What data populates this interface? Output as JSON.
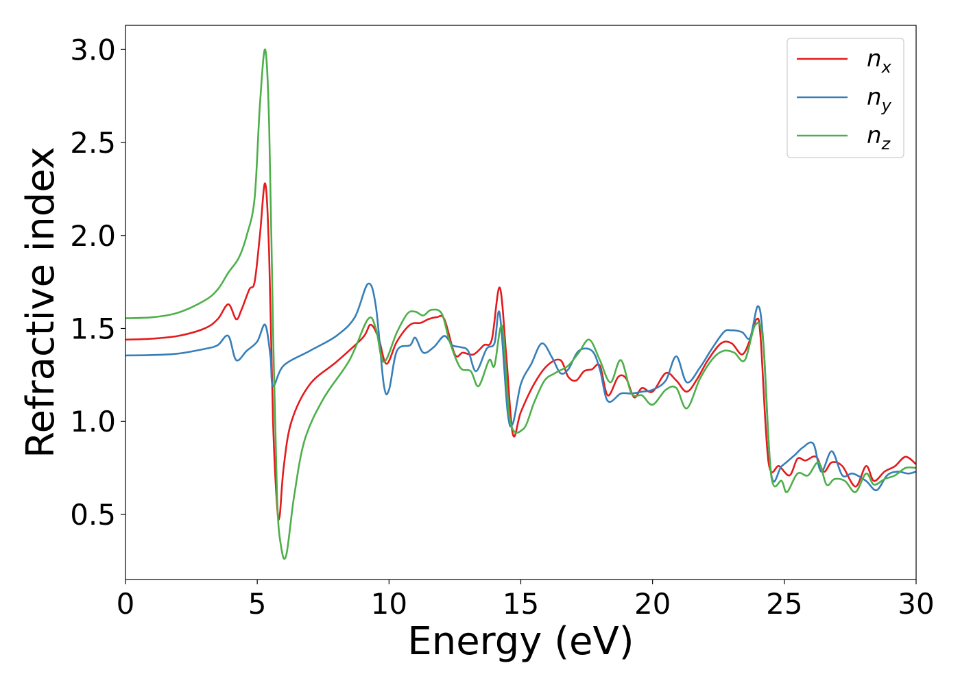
{
  "chart_data": {
    "type": "line",
    "title": "",
    "xlabel": "Energy (eV)",
    "ylabel": "Refractive index",
    "xlim": [
      0,
      30
    ],
    "ylim": [
      0.15,
      3.13
    ],
    "xticks": [
      0,
      5,
      10,
      15,
      20,
      25,
      30
    ],
    "yticks": [
      0.5,
      1.0,
      1.5,
      2.0,
      2.5,
      3.0
    ],
    "xtick_labels": [
      "0",
      "5",
      "10",
      "15",
      "20",
      "25",
      "30"
    ],
    "ytick_labels": [
      "0.5",
      "1.0",
      "1.5",
      "2.0",
      "2.5",
      "3.0"
    ],
    "grid": false,
    "legend_position": "top-right",
    "series": [
      {
        "name": "n_x",
        "legend_base": "n",
        "legend_sub": "x",
        "color": "#e41a1c",
        "points": [
          [
            0,
            1.44
          ],
          [
            1,
            1.445
          ],
          [
            2,
            1.46
          ],
          [
            3,
            1.5
          ],
          [
            3.5,
            1.55
          ],
          [
            3.9,
            1.63
          ],
          [
            4.2,
            1.55
          ],
          [
            4.4,
            1.6
          ],
          [
            4.7,
            1.71
          ],
          [
            4.9,
            1.75
          ],
          [
            5.1,
            2.0
          ],
          [
            5.3,
            2.28
          ],
          [
            5.45,
            1.9
          ],
          [
            5.6,
            1.0
          ],
          [
            5.75,
            0.55
          ],
          [
            5.85,
            0.49
          ],
          [
            6.0,
            0.75
          ],
          [
            6.3,
            1.0
          ],
          [
            7,
            1.2
          ],
          [
            8,
            1.32
          ],
          [
            9,
            1.45
          ],
          [
            9.3,
            1.52
          ],
          [
            9.6,
            1.45
          ],
          [
            9.9,
            1.31
          ],
          [
            10.3,
            1.43
          ],
          [
            10.8,
            1.52
          ],
          [
            11.2,
            1.53
          ],
          [
            11.5,
            1.55
          ],
          [
            11.8,
            1.56
          ],
          [
            12.1,
            1.55
          ],
          [
            12.5,
            1.36
          ],
          [
            12.8,
            1.37
          ],
          [
            13.2,
            1.36
          ],
          [
            13.6,
            1.41
          ],
          [
            13.9,
            1.44
          ],
          [
            14.2,
            1.72
          ],
          [
            14.45,
            1.35
          ],
          [
            14.7,
            0.93
          ],
          [
            15,
            1.05
          ],
          [
            15.5,
            1.2
          ],
          [
            16,
            1.3
          ],
          [
            16.5,
            1.33
          ],
          [
            16.8,
            1.24
          ],
          [
            17.1,
            1.22
          ],
          [
            17.4,
            1.27
          ],
          [
            17.7,
            1.28
          ],
          [
            18.0,
            1.3
          ],
          [
            18.3,
            1.14
          ],
          [
            18.7,
            1.24
          ],
          [
            19.0,
            1.23
          ],
          [
            19.3,
            1.13
          ],
          [
            19.6,
            1.18
          ],
          [
            20,
            1.16
          ],
          [
            20.5,
            1.26
          ],
          [
            20.9,
            1.22
          ],
          [
            21.3,
            1.16
          ],
          [
            21.7,
            1.23
          ],
          [
            22.1,
            1.33
          ],
          [
            22.6,
            1.42
          ],
          [
            23,
            1.42
          ],
          [
            23.4,
            1.36
          ],
          [
            23.7,
            1.44
          ],
          [
            23.95,
            1.55
          ],
          [
            24.1,
            1.45
          ],
          [
            24.4,
            0.78
          ],
          [
            24.8,
            0.76
          ],
          [
            25.2,
            0.71
          ],
          [
            25.5,
            0.8
          ],
          [
            25.8,
            0.79
          ],
          [
            26.2,
            0.81
          ],
          [
            26.5,
            0.73
          ],
          [
            26.8,
            0.78
          ],
          [
            27.2,
            0.76
          ],
          [
            27.7,
            0.65
          ],
          [
            28.1,
            0.76
          ],
          [
            28.4,
            0.68
          ],
          [
            28.8,
            0.73
          ],
          [
            29.2,
            0.76
          ],
          [
            29.6,
            0.81
          ],
          [
            30,
            0.77
          ]
        ]
      },
      {
        "name": "n_y",
        "legend_base": "n",
        "legend_sub": "y",
        "color": "#377eb8",
        "points": [
          [
            0,
            1.355
          ],
          [
            1,
            1.357
          ],
          [
            2,
            1.365
          ],
          [
            3,
            1.39
          ],
          [
            3.5,
            1.41
          ],
          [
            3.9,
            1.46
          ],
          [
            4.2,
            1.33
          ],
          [
            4.6,
            1.38
          ],
          [
            5.0,
            1.43
          ],
          [
            5.3,
            1.52
          ],
          [
            5.5,
            1.35
          ],
          [
            5.6,
            1.19
          ],
          [
            6,
            1.3
          ],
          [
            7,
            1.38
          ],
          [
            8,
            1.46
          ],
          [
            8.7,
            1.56
          ],
          [
            9.2,
            1.74
          ],
          [
            9.5,
            1.62
          ],
          [
            9.8,
            1.2
          ],
          [
            10.0,
            1.17
          ],
          [
            10.3,
            1.38
          ],
          [
            10.8,
            1.41
          ],
          [
            11.0,
            1.45
          ],
          [
            11.3,
            1.37
          ],
          [
            11.7,
            1.4
          ],
          [
            12.1,
            1.46
          ],
          [
            12.4,
            1.41
          ],
          [
            12.7,
            1.4
          ],
          [
            13.0,
            1.38
          ],
          [
            13.3,
            1.27
          ],
          [
            13.7,
            1.39
          ],
          [
            14.0,
            1.42
          ],
          [
            14.2,
            1.58
          ],
          [
            14.5,
            1.05
          ],
          [
            14.7,
            0.99
          ],
          [
            15,
            1.2
          ],
          [
            15.4,
            1.31
          ],
          [
            15.8,
            1.42
          ],
          [
            16.2,
            1.34
          ],
          [
            16.5,
            1.26
          ],
          [
            16.8,
            1.28
          ],
          [
            17.2,
            1.38
          ],
          [
            17.7,
            1.38
          ],
          [
            18.0,
            1.28
          ],
          [
            18.3,
            1.11
          ],
          [
            18.8,
            1.15
          ],
          [
            19.2,
            1.15
          ],
          [
            19.6,
            1.16
          ],
          [
            20,
            1.17
          ],
          [
            20.5,
            1.22
          ],
          [
            20.9,
            1.35
          ],
          [
            21.3,
            1.21
          ],
          [
            21.8,
            1.29
          ],
          [
            22.2,
            1.38
          ],
          [
            22.7,
            1.48
          ],
          [
            23,
            1.49
          ],
          [
            23.4,
            1.48
          ],
          [
            23.7,
            1.45
          ],
          [
            24.0,
            1.62
          ],
          [
            24.2,
            1.43
          ],
          [
            24.5,
            0.72
          ],
          [
            24.9,
            0.76
          ],
          [
            25.4,
            0.82
          ],
          [
            25.7,
            0.86
          ],
          [
            26.1,
            0.88
          ],
          [
            26.4,
            0.73
          ],
          [
            26.8,
            0.84
          ],
          [
            27.2,
            0.71
          ],
          [
            27.6,
            0.72
          ],
          [
            28.1,
            0.68
          ],
          [
            28.5,
            0.63
          ],
          [
            28.9,
            0.71
          ],
          [
            29.3,
            0.73
          ],
          [
            29.7,
            0.72
          ],
          [
            30,
            0.73
          ]
        ]
      },
      {
        "name": "n_z",
        "legend_base": "n",
        "legend_sub": "z",
        "color": "#4daf4a",
        "points": [
          [
            0,
            1.555
          ],
          [
            1,
            1.56
          ],
          [
            2,
            1.585
          ],
          [
            3,
            1.65
          ],
          [
            3.5,
            1.71
          ],
          [
            3.9,
            1.8
          ],
          [
            4.3,
            1.88
          ],
          [
            4.6,
            2.0
          ],
          [
            4.9,
            2.2
          ],
          [
            5.1,
            2.7
          ],
          [
            5.3,
            3.0
          ],
          [
            5.45,
            2.6
          ],
          [
            5.6,
            1.5
          ],
          [
            5.75,
            0.6
          ],
          [
            5.9,
            0.33
          ],
          [
            6.1,
            0.28
          ],
          [
            6.4,
            0.6
          ],
          [
            6.8,
            0.9
          ],
          [
            7.5,
            1.12
          ],
          [
            8.5,
            1.33
          ],
          [
            9.2,
            1.55
          ],
          [
            9.5,
            1.5
          ],
          [
            9.8,
            1.32
          ],
          [
            10.3,
            1.48
          ],
          [
            10.7,
            1.58
          ],
          [
            11.0,
            1.59
          ],
          [
            11.3,
            1.57
          ],
          [
            11.6,
            1.6
          ],
          [
            12.0,
            1.58
          ],
          [
            12.3,
            1.43
          ],
          [
            12.7,
            1.29
          ],
          [
            13.1,
            1.27
          ],
          [
            13.4,
            1.19
          ],
          [
            13.8,
            1.33
          ],
          [
            14.0,
            1.3
          ],
          [
            14.3,
            1.51
          ],
          [
            14.6,
            1.0
          ],
          [
            15.1,
            0.96
          ],
          [
            15.5,
            1.1
          ],
          [
            15.9,
            1.22
          ],
          [
            16.3,
            1.26
          ],
          [
            16.8,
            1.3
          ],
          [
            17.2,
            1.37
          ],
          [
            17.6,
            1.44
          ],
          [
            18.0,
            1.33
          ],
          [
            18.4,
            1.21
          ],
          [
            18.8,
            1.33
          ],
          [
            19.2,
            1.15
          ],
          [
            19.6,
            1.14
          ],
          [
            20,
            1.09
          ],
          [
            20.5,
            1.17
          ],
          [
            20.9,
            1.18
          ],
          [
            21.3,
            1.07
          ],
          [
            21.8,
            1.23
          ],
          [
            22.3,
            1.34
          ],
          [
            22.7,
            1.38
          ],
          [
            23.1,
            1.37
          ],
          [
            23.5,
            1.33
          ],
          [
            23.9,
            1.52
          ],
          [
            24.2,
            1.42
          ],
          [
            24.5,
            0.71
          ],
          [
            24.9,
            0.68
          ],
          [
            25.1,
            0.62
          ],
          [
            25.5,
            0.72
          ],
          [
            25.9,
            0.71
          ],
          [
            26.3,
            0.78
          ],
          [
            26.6,
            0.66
          ],
          [
            26.9,
            0.69
          ],
          [
            27.3,
            0.68
          ],
          [
            27.7,
            0.62
          ],
          [
            28.1,
            0.72
          ],
          [
            28.4,
            0.66
          ],
          [
            28.8,
            0.69
          ],
          [
            29.2,
            0.71
          ],
          [
            29.6,
            0.75
          ],
          [
            30,
            0.75
          ]
        ]
      }
    ]
  }
}
